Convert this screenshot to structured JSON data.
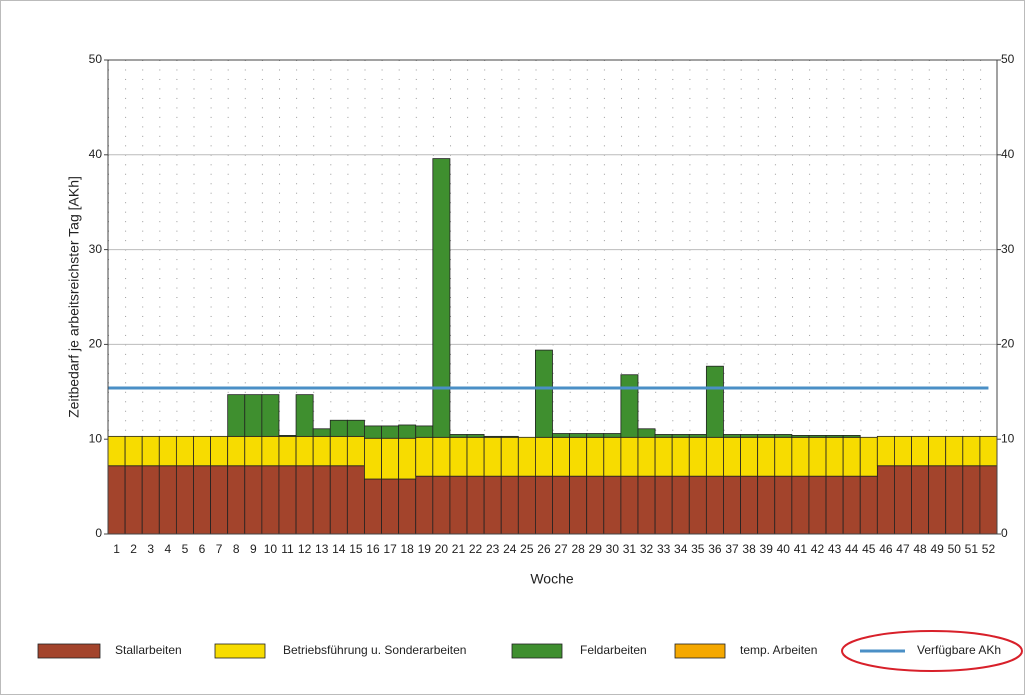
{
  "chart_data": {
    "type": "bar",
    "stacked": true,
    "ylabel": "Zeitbedarf je arbeitsreichster Tag [AKh]",
    "xlabel": "Woche",
    "categories": [
      "1",
      "2",
      "3",
      "4",
      "5",
      "6",
      "7",
      "8",
      "9",
      "10",
      "11",
      "12",
      "13",
      "14",
      "15",
      "16",
      "17",
      "18",
      "19",
      "20",
      "21",
      "22",
      "23",
      "24",
      "25",
      "26",
      "27",
      "28",
      "29",
      "30",
      "31",
      "32",
      "33",
      "34",
      "35",
      "36",
      "37",
      "38",
      "39",
      "40",
      "41",
      "42",
      "43",
      "44",
      "45",
      "46",
      "47",
      "48",
      "49",
      "50",
      "51",
      "52"
    ],
    "ylim": [
      0,
      50
    ],
    "yticks": [
      0,
      10,
      20,
      30,
      40,
      50
    ],
    "y2lim": [
      0,
      50
    ],
    "y2ticks": [
      0,
      10,
      20,
      30,
      40,
      50
    ],
    "grid": true,
    "legend": "bottom",
    "series": [
      {
        "name": "Stallarbeiten",
        "color": "#a3442c",
        "values": [
          7.2,
          7.2,
          7.2,
          7.2,
          7.2,
          7.2,
          7.2,
          7.2,
          7.2,
          7.2,
          7.2,
          7.2,
          7.2,
          7.2,
          7.2,
          5.8,
          5.8,
          5.8,
          6.1,
          6.1,
          6.1,
          6.1,
          6.1,
          6.1,
          6.1,
          6.1,
          6.1,
          6.1,
          6.1,
          6.1,
          6.1,
          6.1,
          6.1,
          6.1,
          6.1,
          6.1,
          6.1,
          6.1,
          6.1,
          6.1,
          6.1,
          6.1,
          6.1,
          6.1,
          6.1,
          7.2,
          7.2,
          7.2,
          7.2,
          7.2,
          7.2,
          7.2
        ]
      },
      {
        "name": "Betriebsführung u. Sonderarbeiten",
        "color": "#f7dc00",
        "values": [
          3.1,
          3.1,
          3.1,
          3.1,
          3.1,
          3.1,
          3.1,
          3.1,
          3.1,
          3.1,
          3.1,
          3.1,
          3.1,
          3.1,
          3.1,
          4.3,
          4.3,
          4.3,
          4.1,
          4.1,
          4.1,
          4.1,
          4.1,
          4.1,
          4.1,
          4.1,
          4.1,
          4.1,
          4.1,
          4.1,
          4.1,
          4.1,
          4.1,
          4.1,
          4.1,
          4.1,
          4.1,
          4.1,
          4.1,
          4.1,
          4.1,
          4.1,
          4.1,
          4.1,
          4.1,
          3.1,
          3.1,
          3.1,
          3.1,
          3.1,
          3.1,
          3.1
        ]
      },
      {
        "name": "Feldarbeiten",
        "color": "#3f8f2f",
        "values": [
          0,
          0,
          0,
          0,
          0,
          0,
          0,
          4.4,
          4.4,
          4.4,
          0.1,
          4.4,
          0.8,
          1.7,
          1.7,
          1.3,
          1.3,
          1.4,
          1.2,
          29.4,
          0.3,
          0.3,
          0.1,
          0.1,
          0,
          9.2,
          0.4,
          0.4,
          0.4,
          0.4,
          6.6,
          0.9,
          0.3,
          0.3,
          0.3,
          7.5,
          0.3,
          0.3,
          0.3,
          0.3,
          0.2,
          0.2,
          0.2,
          0.2,
          0,
          0,
          0,
          0,
          0,
          0,
          0,
          0
        ]
      },
      {
        "name": "temp. Arbeiten",
        "color": "#f5a800",
        "values": [
          0,
          0,
          0,
          0,
          0,
          0,
          0,
          0,
          0,
          0,
          0,
          0,
          0,
          0,
          0,
          0,
          0,
          0,
          0,
          0,
          0,
          0,
          0,
          0,
          0,
          0,
          0,
          0,
          0,
          0,
          0,
          0,
          0,
          0,
          0,
          0,
          0,
          0,
          0,
          0,
          0,
          0,
          0,
          0,
          0,
          0,
          0,
          0,
          0,
          0,
          0,
          0
        ]
      },
      {
        "name": "Verfügbare AKh",
        "type": "line",
        "color": "#4a8fc6",
        "values": [
          15.4,
          15.4,
          15.4,
          15.4,
          15.4,
          15.4,
          15.4,
          15.4,
          15.4,
          15.4,
          15.4,
          15.4,
          15.4,
          15.4,
          15.4,
          15.4,
          15.4,
          15.4,
          15.4,
          15.4,
          15.4,
          15.4,
          15.4,
          15.4,
          15.4,
          15.4,
          15.4,
          15.4,
          15.4,
          15.4,
          15.4,
          15.4,
          15.4,
          15.4,
          15.4,
          15.4,
          15.4,
          15.4,
          15.4,
          15.4,
          15.4,
          15.4,
          15.4,
          15.4,
          15.4,
          15.4,
          15.4,
          15.4,
          15.4,
          15.4,
          15.4,
          15.4
        ]
      }
    ]
  }
}
